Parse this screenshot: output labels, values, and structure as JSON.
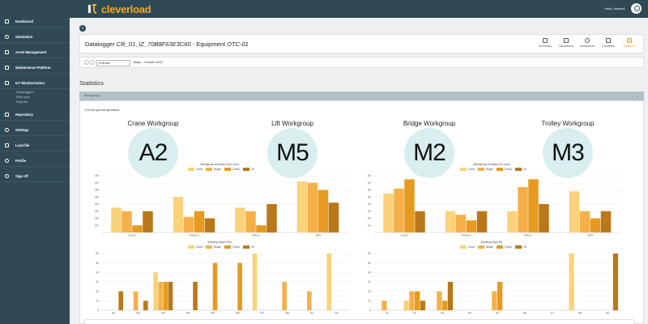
{
  "brand": {
    "name": "cleverload",
    "color": "#f5a623"
  },
  "header": {
    "greeting": "Hello, Izarum1"
  },
  "sidebar": {
    "items": [
      {
        "label": "Dashboard",
        "icon": "home-icon"
      },
      {
        "label": "Simulation",
        "icon": "play-icon"
      },
      {
        "label": "Asset Management",
        "icon": "box-icon"
      },
      {
        "label": "Maintenance Platform",
        "icon": "wrench-icon"
      },
      {
        "label": "IoT Monitorization",
        "icon": "chip-icon"
      },
      {
        "label": "Repository",
        "icon": "folder-icon"
      },
      {
        "label": "Settings",
        "icon": "gear-icon"
      },
      {
        "label": "Load file",
        "icon": "upload-icon"
      },
      {
        "label": "Profile",
        "icon": "user-icon"
      },
      {
        "label": "Sign off",
        "icon": "power-icon"
      }
    ],
    "iot_sub": [
      "Dataloggers",
      "Real time",
      "Reports"
    ]
  },
  "main": {
    "step": "1",
    "datalogger": {
      "prefix": "Datalogger",
      "id": "CR_01_IZ_70B8F63E3C60",
      "mid": "- Equipment",
      "equipment": "OTC-01"
    },
    "tabs": [
      {
        "label": "Summary",
        "icon": "document-icon"
      },
      {
        "label": "Operations",
        "icon": "calendar-icon"
      },
      {
        "label": "Incidences",
        "icon": "alert-icon"
      },
      {
        "label": "Condition",
        "icon": "grid-icon"
      },
      {
        "label": "Statistics",
        "icon": "chart-icon"
      }
    ],
    "date": {
      "prev": "‹",
      "next": "›",
      "period": "6 Month",
      "range": "Mayo - Octubre 2024"
    },
    "statistics_title": "Statistics",
    "accordion": "Workgroup",
    "period_text": "For the period specified:",
    "workgroups": [
      {
        "label": "Crane Workgroup",
        "value": "A2"
      },
      {
        "label": "Lift Workgroup",
        "value": "M5"
      },
      {
        "label": "Bridge Workgroup",
        "value": "M2"
      },
      {
        "label": "Trolley Workgroup",
        "value": "M3"
      }
    ]
  },
  "colors": {
    "crane": "#f9d27a",
    "bridge": "#f5b04a",
    "trolley": "#e69a1f",
    "lift": "#b9781a"
  },
  "chart_data": [
    {
      "type": "bar",
      "title": "Workgroup evolution Fem norm",
      "categories": [
        "Enero",
        "Febrero",
        "Marzo",
        "Abril"
      ],
      "y_ticks": [
        "M1",
        "M2",
        "M3",
        "M4",
        "M5",
        "M6",
        "M7",
        "M8"
      ],
      "ylim": [
        0,
        8
      ],
      "series": [
        {
          "name": "Crane",
          "values": [
            3.5,
            5,
            3.5,
            7.2
          ]
        },
        {
          "name": "Bridge",
          "values": [
            3,
            2.2,
            3,
            7
          ]
        },
        {
          "name": "Trolley",
          "values": [
            1,
            3,
            1,
            6
          ]
        },
        {
          "name": "Lift",
          "values": [
            3,
            2,
            4,
            4.2
          ]
        }
      ]
    },
    {
      "type": "bar",
      "title": "Workgroup Evolution En norm",
      "categories": [
        "Enero",
        "Febrero",
        "Marzo",
        "Abril"
      ],
      "y_ticks": [
        "A1",
        "A2",
        "A3",
        "A4",
        "A5",
        "A6",
        "A7",
        "A8"
      ],
      "ylim": [
        0,
        8
      ],
      "series": [
        {
          "name": "Crane",
          "values": [
            5.5,
            3,
            3,
            5.8
          ]
        },
        {
          "name": "Bridge",
          "values": [
            6.2,
            2.5,
            6.4,
            3
          ]
        },
        {
          "name": "Trolley",
          "values": [
            7.5,
            1.7,
            7.5,
            2
          ]
        },
        {
          "name": "Lift",
          "values": [
            3,
            3,
            4,
            3
          ]
        }
      ]
    },
    {
      "type": "bar",
      "title": "Working Days FEM",
      "categories": [
        "M1",
        "M2",
        "M3",
        "M4",
        "M5",
        "M6",
        "M7",
        "M8",
        "A2",
        "A2"
      ],
      "y_ticks": [
        "0",
        "10",
        "20",
        "30",
        "40",
        "50",
        "60"
      ],
      "ylim": [
        0,
        60
      ],
      "series": [
        {
          "name": "Crane",
          "values": [
            0,
            0,
            40,
            0,
            0,
            0,
            60,
            0,
            0,
            60
          ]
        },
        {
          "name": "Bridge",
          "values": [
            0,
            20,
            30,
            0,
            0,
            0,
            0,
            30,
            20,
            0
          ]
        },
        {
          "name": "Trolley",
          "values": [
            0,
            0,
            30,
            0,
            50,
            50,
            0,
            0,
            0,
            0
          ]
        },
        {
          "name": "Lift",
          "values": [
            20,
            10,
            30,
            30,
            0,
            0,
            0,
            0,
            0,
            0
          ]
        }
      ]
    },
    {
      "type": "bar",
      "title": "Working Days EN",
      "categories": [
        "A1",
        "A2",
        "A3",
        "A4",
        "A5",
        "A6",
        "A7",
        "A8",
        "A9"
      ],
      "y_ticks": [
        "0",
        "10",
        "20",
        "30",
        "40",
        "50",
        "60"
      ],
      "ylim": [
        0,
        60
      ],
      "series": [
        {
          "name": "Crane",
          "values": [
            0,
            10,
            0,
            0,
            0,
            0,
            0,
            60,
            0
          ]
        },
        {
          "name": "Bridge",
          "values": [
            10,
            20,
            20,
            0,
            20,
            0,
            0,
            0,
            0
          ]
        },
        {
          "name": "Trolley",
          "values": [
            0,
            20,
            10,
            0,
            30,
            0,
            0,
            0,
            0
          ]
        },
        {
          "name": "Lift",
          "values": [
            0,
            10,
            30,
            0,
            0,
            0,
            0,
            0,
            60
          ]
        }
      ]
    }
  ]
}
